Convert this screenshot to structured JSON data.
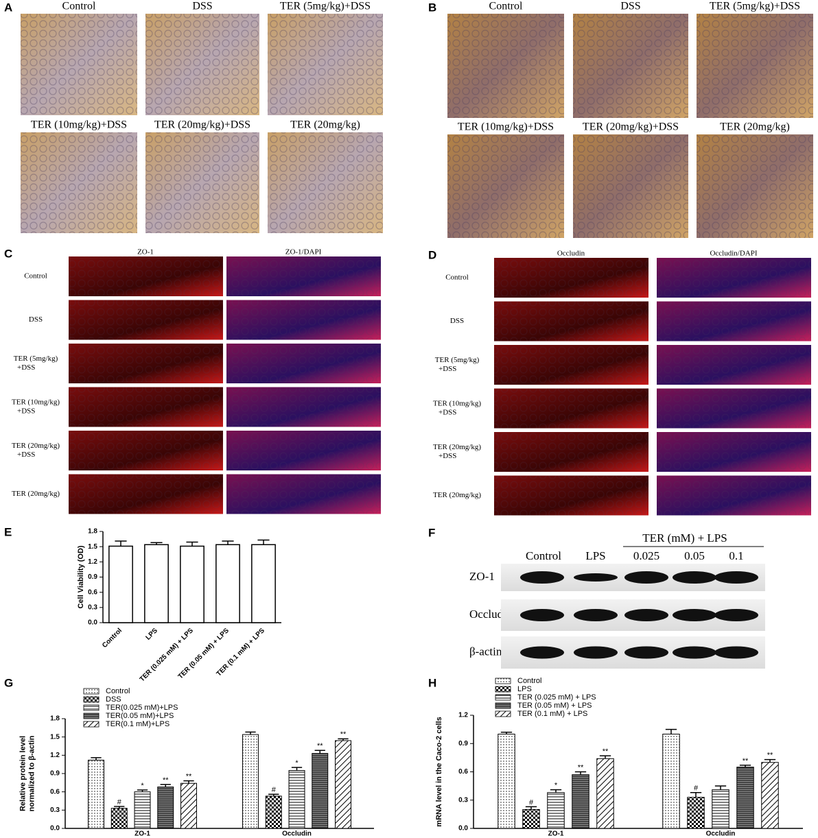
{
  "panels": {
    "A": {
      "letter": "A",
      "labels": [
        "Control",
        "DSS",
        "TER (5mg/kg)+DSS",
        "TER (10mg/kg)+DSS",
        "TER (20mg/kg)+DSS",
        "TER (20mg/kg)"
      ]
    },
    "B": {
      "letter": "B",
      "labels": [
        "Control",
        "DSS",
        "TER (5mg/kg)+DSS",
        "TER (10mg/kg)+DSS",
        "TER (20mg/kg)+DSS",
        "TER (20mg/kg)"
      ]
    },
    "C": {
      "letter": "C",
      "columns": [
        "ZO-1",
        "ZO-1/DAPI"
      ],
      "rows": [
        [
          "Control"
        ],
        [
          "DSS"
        ],
        [
          "TER (5mg/kg)",
          "+DSS"
        ],
        [
          "TER (10mg/kg)",
          "+DSS"
        ],
        [
          "TER (20mg/kg)",
          "+DSS"
        ],
        [
          "TER (20mg/kg)"
        ]
      ]
    },
    "D": {
      "letter": "D",
      "columns": [
        "Occludin",
        "Occludin/DAPI"
      ],
      "rows": [
        [
          "Control"
        ],
        [
          "DSS"
        ],
        [
          "TER (5mg/kg)",
          "+DSS"
        ],
        [
          "TER (10mg/kg)",
          "+DSS"
        ],
        [
          "TER (20mg/kg)",
          "+DSS"
        ],
        [
          "TER (20mg/kg)"
        ]
      ]
    },
    "F": {
      "letter": "F",
      "group_label": "TER (mM) + LPS",
      "columns": [
        "Control",
        "LPS",
        "0.025",
        "0.05",
        "0.1"
      ],
      "rows": [
        "ZO-1",
        "Occludin",
        "β-actin"
      ]
    }
  },
  "chart_data": [
    {
      "type": "bar",
      "panel": "E",
      "ylabel": "Cell Viability (OD)",
      "categories": [
        "Control",
        "LPS",
        "TER (0.025 mM) + LPS",
        "TER (0.05 mM) + LPS",
        "TER (0.1 mM) + LPS"
      ],
      "values": [
        1.51,
        1.54,
        1.51,
        1.54,
        1.54
      ],
      "errors": [
        0.1,
        0.04,
        0.08,
        0.07,
        0.09
      ],
      "color": "#ffffff",
      "ylim": [
        0,
        1.8
      ],
      "yticks": [
        {
          "value": 0,
          "label": "0.0"
        },
        0.3,
        0.6,
        0.9,
        1.2,
        1.5,
        1.8
      ]
    },
    {
      "type": "grouped_bar",
      "panel": "G",
      "ylabel": [
        "Relative protein level",
        "normalized to β-actin"
      ],
      "categories": [
        "ZO-1",
        "Occludin"
      ],
      "series": [
        {
          "name": "Control",
          "color": "#ffffff",
          "pattern": "dots",
          "values": [
            1.12,
            1.54
          ],
          "errors": [
            0.04,
            0.04
          ],
          "annotations": [
            null,
            null
          ]
        },
        {
          "name": "DSS",
          "color": "#ffffff",
          "pattern": "checks",
          "values": [
            0.33,
            0.53
          ],
          "errors": [
            0.03,
            0.03
          ],
          "annotations": [
            "#",
            "#"
          ]
        },
        {
          "name": "TER(0.025 mM)+LPS",
          "color": "#ffffff",
          "pattern": "hlines",
          "values": [
            0.6,
            0.95
          ],
          "errors": [
            0.03,
            0.05
          ],
          "annotations": [
            "*",
            "*"
          ]
        },
        {
          "name": "TER(0.05 mM)+LPS",
          "color": "#ffffff",
          "pattern": "dense",
          "values": [
            0.68,
            1.23
          ],
          "errors": [
            0.04,
            0.05
          ],
          "annotations": [
            "**",
            "**"
          ]
        },
        {
          "name": "TER(0.1 mM)+LPS",
          "color": "#ffffff",
          "pattern": "diag",
          "values": [
            0.74,
            1.44
          ],
          "errors": [
            0.04,
            0.03
          ],
          "annotations": [
            "**",
            "**"
          ]
        }
      ],
      "ylim": [
        0,
        1.8
      ],
      "yticks": [
        {
          "value": 0,
          "label": "0.0"
        },
        0.3,
        0.6,
        0.9,
        1.2,
        1.5,
        1.8
      ]
    },
    {
      "type": "grouped_bar",
      "panel": "H",
      "ylabel": "mRNA level in the Caco-2 cells",
      "categories": [
        "ZO-1",
        "Occludin"
      ],
      "series": [
        {
          "name": "Control",
          "color": "#ffffff",
          "pattern": "dots",
          "values": [
            1.0,
            1.0
          ],
          "errors": [
            0.02,
            0.05
          ],
          "annotations": [
            null,
            null
          ]
        },
        {
          "name": "LPS",
          "color": "#ffffff",
          "pattern": "checks",
          "values": [
            0.2,
            0.33
          ],
          "errors": [
            0.03,
            0.05
          ],
          "annotations": [
            "#",
            "#"
          ]
        },
        {
          "name": "TER (0.025 mM) + LPS",
          "color": "#ffffff",
          "pattern": "hlines",
          "values": [
            0.38,
            0.41
          ],
          "errors": [
            0.03,
            0.04
          ],
          "annotations": [
            "*",
            null
          ]
        },
        {
          "name": "TER (0.05 mM) + LPS",
          "color": "#ffffff",
          "pattern": "dense",
          "values": [
            0.57,
            0.65
          ],
          "errors": [
            0.03,
            0.02
          ],
          "annotations": [
            "**",
            "**"
          ]
        },
        {
          "name": "TER (0.1 mM) + LPS",
          "color": "#ffffff",
          "pattern": "diag",
          "values": [
            0.74,
            0.7
          ],
          "errors": [
            0.03,
            0.03
          ],
          "annotations": [
            "**",
            "**"
          ]
        }
      ],
      "ylim": [
        0,
        1.2
      ],
      "yticks": [
        {
          "value": 0,
          "label": "0.0"
        },
        0.3,
        0.6,
        0.9,
        1.2
      ]
    }
  ]
}
